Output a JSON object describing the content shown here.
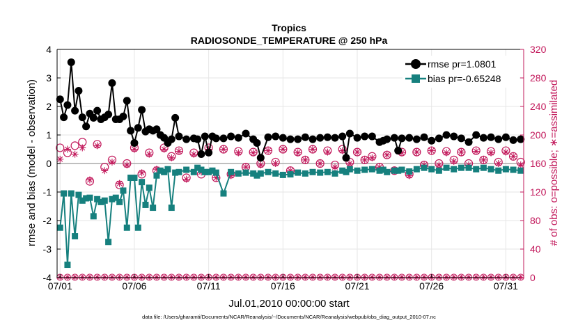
{
  "chart_data": {
    "type": "line",
    "title": "Tropics",
    "subtitle": "RADIOSONDE_TEMPERATURE @ 250 hPa",
    "xlabel": "Jul.01,2010 00:00:00 start",
    "ylabel_left": "rmse and bias (model - observation)",
    "ylabel_right": "# of obs: o=possible; ∗=assimilated",
    "footnote": "data file: /Users/gharamti/Documents/NCAR/Reanalysis/~/Documents/NCAR/Reanalysis/webpub/obs_diag_output_2010-07.nc",
    "xlim": [
      0.8,
      32.2
    ],
    "ylim_left": [
      -4,
      4
    ],
    "ylim_right": [
      0,
      320
    ],
    "x_ticks": [
      1,
      6,
      11,
      16,
      21,
      26,
      31
    ],
    "x_tick_labels": [
      "07/01",
      "07/06",
      "07/11",
      "07/16",
      "07/21",
      "07/26",
      "07/31"
    ],
    "y_left_ticks": [
      -4,
      -3,
      -2,
      -1,
      0,
      1,
      2,
      3,
      4
    ],
    "y_left_tick_labels": [
      "-4",
      "-3",
      "-2",
      "-1",
      "0",
      "1",
      "2",
      "3",
      "4"
    ],
    "y_right_ticks": [
      0,
      40,
      80,
      120,
      160,
      200,
      240,
      280,
      320
    ],
    "y_right_tick_labels": [
      "0",
      "40",
      "80",
      "120",
      "160",
      "200",
      "240",
      "280",
      "320"
    ],
    "legend": [
      {
        "label": "rmse pr=1.0801",
        "color": "#000000",
        "marker": "circle"
      },
      {
        "label": "bias pr=-0.65248",
        "color": "#16807e",
        "marker": "square"
      }
    ],
    "colors": {
      "rmse": "#000000",
      "bias": "#16807e",
      "obs": "#c2185b",
      "zero_line": "#aaaaaa",
      "grid": "#e6e6e6"
    },
    "series": [
      {
        "name": "rmse",
        "x": [
          1.0,
          1.25,
          1.5,
          1.75,
          2.0,
          2.25,
          2.5,
          2.75,
          3.0,
          3.25,
          3.5,
          3.75,
          4.0,
          4.25,
          4.5,
          4.75,
          5.0,
          5.25,
          5.5,
          5.75,
          6.0,
          6.25,
          6.5,
          6.75,
          7.0,
          7.25,
          7.5,
          7.75,
          8.0,
          8.25,
          8.5,
          8.75,
          9.0,
          9.5,
          10.0,
          10.25,
          10.5,
          10.75,
          11.0,
          11.25,
          11.5,
          12.0,
          12.5,
          13.0,
          13.5,
          14.0,
          14.25,
          14.5,
          15.0,
          15.5,
          16.0,
          16.5,
          17.0,
          17.5,
          18.0,
          18.5,
          19.0,
          19.5,
          20.0,
          20.25,
          20.5,
          21.0,
          21.5,
          22.0,
          22.5,
          22.75,
          23.0,
          23.5,
          23.75,
          24.0,
          24.5,
          25.0,
          25.5,
          26.0,
          26.5,
          27.0,
          27.5,
          28.0,
          28.5,
          29.0,
          29.5,
          30.0,
          30.5,
          31.0,
          31.5,
          32.0
        ],
        "values": [
          2.25,
          1.62,
          2.05,
          3.55,
          1.85,
          2.55,
          1.62,
          1.3,
          1.75,
          1.6,
          1.85,
          1.55,
          1.62,
          1.72,
          2.82,
          1.55,
          1.55,
          1.65,
          2.2,
          1.15,
          0.72,
          1.25,
          1.88,
          1.12,
          1.2,
          1.15,
          1.2,
          1.0,
          0.9,
          0.72,
          0.85,
          1.6,
          0.95,
          0.85,
          0.88,
          0.85,
          0.33,
          0.95,
          0.38,
          0.95,
          0.88,
          0.88,
          0.95,
          0.9,
          1.05,
          0.85,
          0.72,
          0.2,
          0.92,
          0.95,
          0.9,
          0.85,
          0.85,
          0.92,
          0.85,
          0.9,
          0.92,
          0.9,
          0.95,
          0.2,
          1.05,
          0.9,
          0.95,
          0.95,
          0.75,
          0.8,
          0.85,
          0.9,
          0.45,
          0.88,
          0.9,
          0.85,
          0.92,
          0.8,
          0.88,
          1.0,
          0.95,
          0.88,
          0.75,
          1.0,
          0.9,
          0.92,
          0.85,
          0.92,
          0.82,
          0.85
        ]
      },
      {
        "name": "bias",
        "x": [
          1.0,
          1.25,
          1.5,
          1.75,
          2.0,
          2.25,
          2.5,
          2.75,
          3.0,
          3.25,
          3.5,
          3.75,
          4.0,
          4.25,
          4.5,
          4.75,
          5.0,
          5.25,
          5.5,
          5.75,
          6.0,
          6.25,
          6.5,
          6.75,
          7.0,
          7.25,
          7.5,
          7.75,
          8.0,
          8.25,
          8.5,
          8.75,
          9.0,
          9.5,
          10.0,
          10.25,
          10.5,
          10.75,
          11.0,
          11.25,
          11.5,
          12.0,
          12.5,
          13.0,
          13.5,
          14.0,
          14.25,
          14.5,
          15.0,
          15.5,
          16.0,
          16.5,
          17.0,
          17.5,
          18.0,
          18.5,
          19.0,
          19.5,
          20.0,
          20.25,
          20.5,
          21.0,
          21.5,
          22.0,
          22.5,
          22.75,
          23.0,
          23.5,
          23.75,
          24.0,
          24.5,
          25.0,
          25.5,
          26.0,
          26.5,
          27.0,
          27.5,
          28.0,
          28.5,
          29.0,
          29.5,
          30.0,
          30.5,
          31.0,
          31.5,
          32.0
        ],
        "values": [
          -2.25,
          -1.05,
          -3.55,
          -1.05,
          -2.55,
          -1.1,
          -1.3,
          -1.22,
          -1.2,
          -1.85,
          -1.25,
          -1.35,
          -1.3,
          -2.75,
          -1.25,
          -1.2,
          -1.35,
          -0.95,
          -2.25,
          -0.5,
          -0.5,
          -2.25,
          -0.65,
          -1.45,
          -0.85,
          -1.55,
          -0.42,
          -0.25,
          -0.3,
          -0.2,
          -1.55,
          -0.32,
          -0.3,
          -0.22,
          -0.3,
          -0.15,
          -0.22,
          -0.3,
          -0.3,
          -0.25,
          -0.32,
          -1.05,
          -0.3,
          -0.35,
          -0.32,
          -0.35,
          -0.42,
          -0.35,
          -0.3,
          -0.35,
          -0.4,
          -0.38,
          -0.32,
          -0.35,
          -0.3,
          -0.32,
          -0.3,
          -0.35,
          -0.25,
          -0.3,
          -0.2,
          -0.25,
          -0.22,
          -0.2,
          -0.25,
          -0.22,
          -0.3,
          -0.25,
          -0.25,
          -0.22,
          -0.28,
          -0.2,
          -0.15,
          -0.2,
          -0.25,
          -0.15,
          -0.2,
          -0.15,
          -0.15,
          -0.2,
          -0.15,
          -0.2,
          -0.25,
          -0.2,
          -0.22,
          -0.25
        ]
      },
      {
        "name": "obs_possible",
        "x": [
          1.0,
          1.5,
          2.0,
          2.5,
          3.0,
          3.5,
          4.0,
          4.5,
          5.0,
          5.5,
          6.0,
          6.5,
          7.0,
          7.5,
          8.0,
          8.5,
          9.0,
          9.5,
          10.0,
          10.5,
          11.0,
          11.5,
          12.0,
          12.5,
          13.0,
          13.5,
          14.0,
          14.5,
          15.0,
          15.5,
          16.0,
          16.5,
          17.0,
          17.5,
          18.0,
          18.5,
          19.0,
          19.5,
          20.0,
          20.5,
          21.0,
          21.5,
          22.0,
          22.5,
          23.0,
          23.5,
          24.0,
          24.5,
          25.0,
          25.5,
          26.0,
          26.5,
          27.0,
          27.5,
          28.0,
          28.5,
          29.0,
          29.5,
          30.0,
          30.5,
          31.0,
          31.5,
          32.0
        ],
        "values": [
          182,
          175,
          185,
          190,
          135,
          187,
          155,
          165,
          130,
          160,
          182,
          145,
          175,
          150,
          182,
          170,
          178,
          140,
          175,
          145,
          182,
          140,
          180,
          145,
          177,
          155,
          176,
          160,
          178,
          162,
          180,
          150,
          176,
          165,
          180,
          160,
          178,
          158,
          180,
          162,
          176,
          165,
          170,
          155,
          172,
          150,
          176,
          145,
          176,
          158,
          178,
          160,
          177,
          165,
          176,
          160,
          178,
          165,
          177,
          162,
          178,
          170,
          162
        ]
      },
      {
        "name": "obs_assimilated",
        "x": [
          1.0,
          1.5,
          2.0,
          2.5,
          3.0,
          3.5,
          4.0,
          4.5,
          5.0,
          5.5,
          6.0,
          6.5,
          7.0,
          7.5,
          8.0,
          8.5,
          9.0,
          9.5,
          10.0,
          10.5,
          11.0,
          11.5,
          12.0,
          12.5,
          13.0,
          13.5,
          14.0,
          14.5,
          15.0,
          15.5,
          16.0,
          16.5,
          17.0,
          17.5,
          18.0,
          18.5,
          19.0,
          19.5,
          20.0,
          20.5,
          21.0,
          21.5,
          22.0,
          22.5,
          23.0,
          23.5,
          24.0,
          24.5,
          25.0,
          25.5,
          26.0,
          26.5,
          27.0,
          27.5,
          28.0,
          28.5,
          29.0,
          29.5,
          30.0,
          30.5,
          31.0,
          31.5,
          32.0
        ],
        "values": [
          166,
          180,
          173,
          182,
          137,
          185,
          150,
          162,
          132,
          158,
          180,
          147,
          173,
          152,
          180,
          168,
          177,
          138,
          173,
          148,
          180,
          140,
          180,
          143,
          175,
          155,
          175,
          158,
          178,
          160,
          180,
          150,
          175,
          165,
          180,
          160,
          176,
          155,
          178,
          160,
          176,
          165,
          168,
          155,
          172,
          150,
          175,
          143,
          176,
          158,
          178,
          158,
          175,
          163,
          176,
          158,
          177,
          165,
          175,
          160,
          176,
          170,
          158
        ]
      }
    ]
  }
}
